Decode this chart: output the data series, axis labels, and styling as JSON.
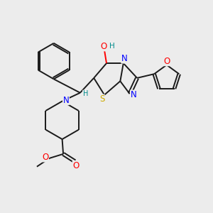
{
  "bg_color": "#ececec",
  "bond_color": "#1a1a1a",
  "atom_colors": {
    "N": "#0000ff",
    "O": "#ff0000",
    "S": "#ccaa00",
    "H_teal": "#008b8b",
    "C": "#1a1a1a"
  },
  "lw": 1.4
}
